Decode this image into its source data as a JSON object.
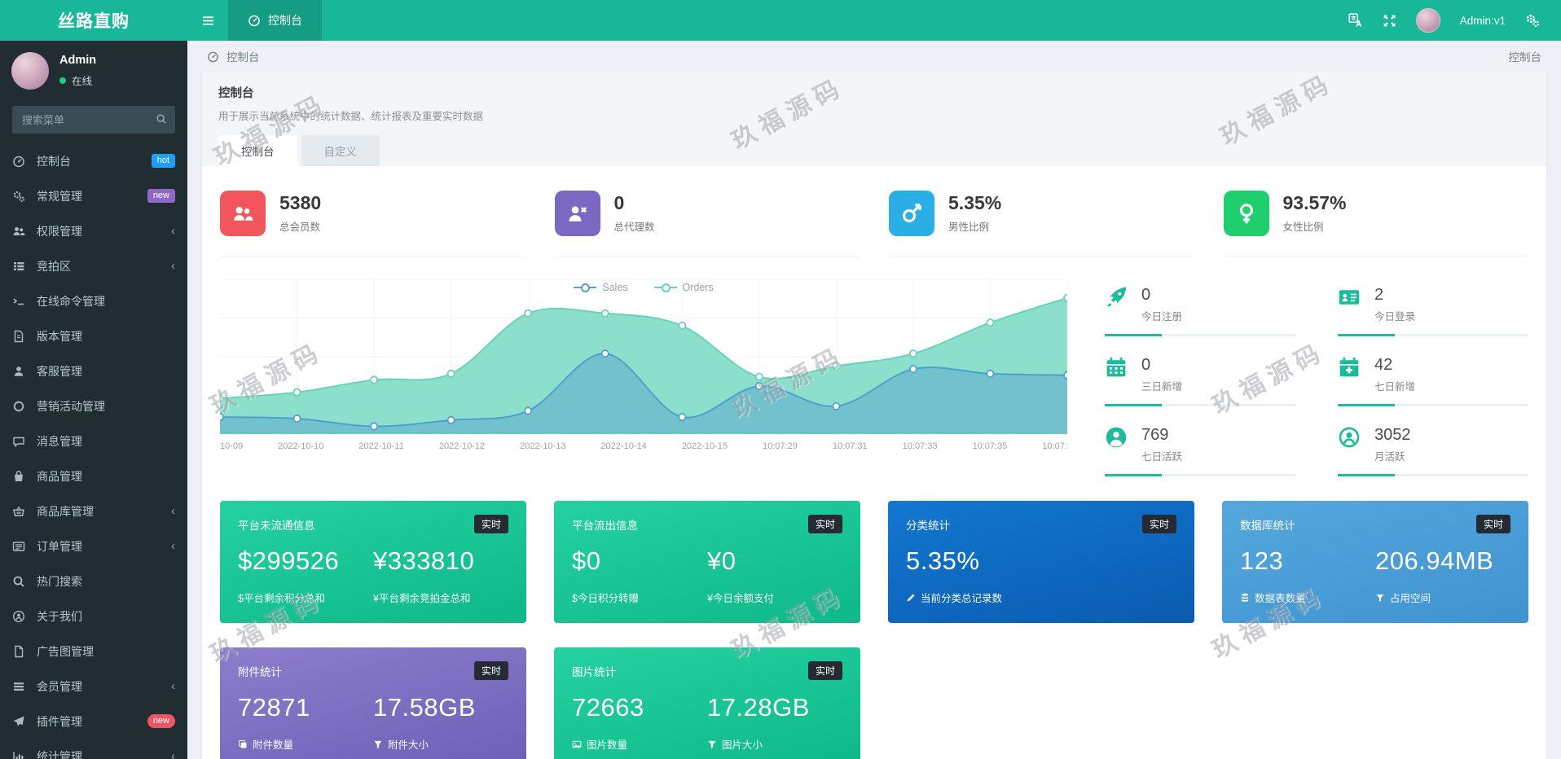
{
  "app": {
    "title": "丝路直购"
  },
  "navbar": {
    "menu_tab_label": "控制台",
    "user_label": "Admin:v1"
  },
  "sidebar": {
    "user": {
      "name": "Admin",
      "status": "在线"
    },
    "search_placeholder": "搜索菜单",
    "items": [
      {
        "label": "控制台",
        "badge": "hot"
      },
      {
        "label": "常规管理",
        "badge": "new"
      },
      {
        "label": "权限管理",
        "chevron": true
      },
      {
        "label": "竞拍区",
        "chevron": true
      },
      {
        "label": "在线命令管理"
      },
      {
        "label": "版本管理"
      },
      {
        "label": "客服管理"
      },
      {
        "label": "营销活动管理"
      },
      {
        "label": "消息管理"
      },
      {
        "label": "商品管理"
      },
      {
        "label": "商品库管理",
        "chevron": true
      },
      {
        "label": "订单管理",
        "chevron": true
      },
      {
        "label": "热门搜索"
      },
      {
        "label": "关于我们"
      },
      {
        "label": "广告图管理"
      },
      {
        "label": "会员管理",
        "chevron": true
      },
      {
        "label": "插件管理",
        "badge": "new"
      },
      {
        "label": "统计管理",
        "chevron": true
      }
    ]
  },
  "breadcrumb": {
    "left": "控制台",
    "right": "控制台"
  },
  "page_header": {
    "title": "控制台",
    "subtitle": "用于展示当前系统中的统计数据、统计报表及重要实时数据",
    "tabs": [
      "控制台",
      "自定义"
    ]
  },
  "stat_cards": [
    {
      "value": "5380",
      "label": "总会员数",
      "color": "#f2555c"
    },
    {
      "value": "0",
      "label": "总代理数",
      "color": "#7b68c3"
    },
    {
      "value": "5.35%",
      "label": "男性比例",
      "color": "#29aee6"
    },
    {
      "value": "93.57%",
      "label": "女性比例",
      "color": "#1fce6d"
    }
  ],
  "chart_data": {
    "type": "area",
    "x": [
      "10-09",
      "2022-10-10",
      "2022-10-11",
      "2022-10-12",
      "2022-10-13",
      "2022-10-14",
      "2022-10-15",
      "10:07:29",
      "10:07:31",
      "10:07:33",
      "10:07:35",
      "10:07:"
    ],
    "series": [
      {
        "name": "Sales",
        "color": "#4f9fd0",
        "fill": "rgba(79,153,208,0.42)",
        "values": [
          11,
          10,
          5,
          9,
          15,
          52,
          11,
          31,
          18,
          42,
          39,
          38
        ]
      },
      {
        "name": "Orders",
        "color": "#67d3b7",
        "fill": "rgba(128,221,197,0.9)",
        "values": [
          23,
          27,
          35,
          39,
          78,
          78,
          70,
          37,
          44,
          52,
          72,
          88
        ]
      }
    ],
    "ylim": [
      0,
      100
    ],
    "grid": true,
    "legend_position": "top-center"
  },
  "mini_stats": [
    {
      "value": "0",
      "label": "今日注册"
    },
    {
      "value": "2",
      "label": "今日登录"
    },
    {
      "value": "0",
      "label": "三日新增"
    },
    {
      "value": "42",
      "label": "七日新增"
    },
    {
      "value": "769",
      "label": "七日活跃"
    },
    {
      "value": "3052",
      "label": "月活跃"
    }
  ],
  "info_boxes": [
    {
      "title": "平台未流通信息",
      "badge": "实时",
      "metrics": [
        {
          "value": "$299526",
          "label": "$平台剩余积分总和"
        },
        {
          "value": "¥333810",
          "label": "¥平台剩余竞拍金总和"
        }
      ]
    },
    {
      "title": "平台流出信息",
      "badge": "实时",
      "metrics": [
        {
          "value": "$0",
          "label": "$今日积分转赠"
        },
        {
          "value": "¥0",
          "label": "¥今日余额支付"
        }
      ]
    },
    {
      "title": "分类统计",
      "badge": "实时",
      "metrics": [
        {
          "value": "5.35%",
          "label": "当前分类总记录数"
        }
      ]
    },
    {
      "title": "数据库统计",
      "badge": "实时",
      "metrics": [
        {
          "value": "123",
          "label": "数据表数量"
        },
        {
          "value": "206.94MB",
          "label": "占用空间"
        }
      ]
    },
    {
      "title": "附件统计",
      "badge": "实时",
      "metrics": [
        {
          "value": "72871",
          "label": "附件数量"
        },
        {
          "value": "17.58GB",
          "label": "附件大小"
        }
      ]
    },
    {
      "title": "图片统计",
      "badge": "实时",
      "metrics": [
        {
          "value": "72663",
          "label": "图片数量"
        },
        {
          "value": "17.28GB",
          "label": "图片大小"
        }
      ]
    }
  ],
  "watermark": {
    "text": "玖福源码"
  },
  "colors": {
    "topbar": "#19b79a",
    "topbar_active_tab": "#149d84",
    "sidebar_bg": "#222d32",
    "sidebar_text": "#b8c7ce",
    "page_bg": "#edf1f5",
    "accent_green": "#1abc9c",
    "badge_hot": "#1e9fff",
    "badge_new_purple": "#9166c9",
    "badge_new_red": "#ed5565",
    "box_green": "#0eb888",
    "box_blue_dark": "#0a5cb0",
    "box_blue_light": "#3f93d0",
    "box_purple": "#6c5fb6"
  }
}
